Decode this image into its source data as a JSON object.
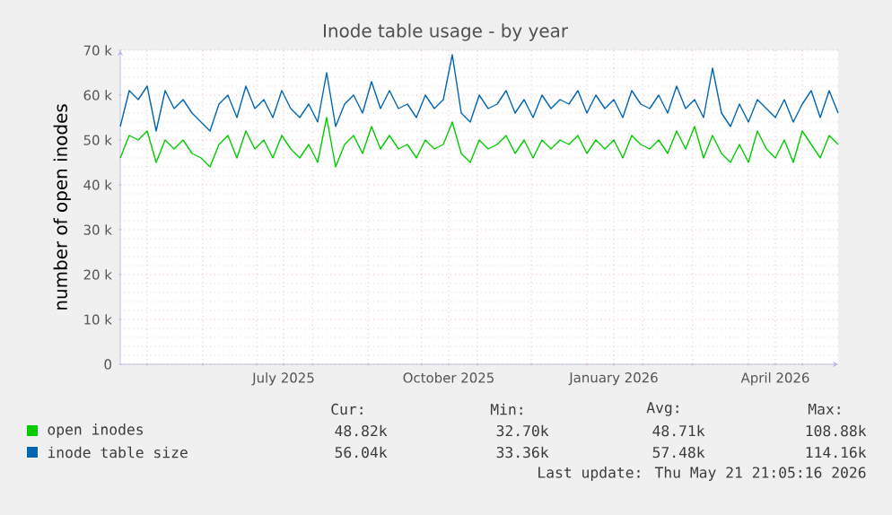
{
  "chart_data": {
    "type": "line",
    "title": "Inode table usage - by year",
    "ylabel": "number of open inodes",
    "xlim": [
      "2025-04-16",
      "2026-05-21"
    ],
    "ylim": [
      0,
      70000
    ],
    "xticks": [
      {
        "value": "2025-05-01",
        "label": null
      },
      {
        "value": "2025-06-01",
        "label": null
      },
      {
        "value": "2025-07-01",
        "label": null
      },
      {
        "value": "2025-07-16",
        "label": "July 2025"
      },
      {
        "value": "2025-08-01",
        "label": null
      },
      {
        "value": "2025-09-01",
        "label": null
      },
      {
        "value": "2025-10-01",
        "label": null
      },
      {
        "value": "2025-10-16",
        "label": "October 2025"
      },
      {
        "value": "2025-11-01",
        "label": null
      },
      {
        "value": "2025-12-01",
        "label": null
      },
      {
        "value": "2026-01-01",
        "label": null
      },
      {
        "value": "2026-01-16",
        "label": "January 2026"
      },
      {
        "value": "2026-02-01",
        "label": null
      },
      {
        "value": "2026-03-01",
        "label": null
      },
      {
        "value": "2026-04-01",
        "label": null
      },
      {
        "value": "2026-04-16",
        "label": "April 2026"
      },
      {
        "value": "2026-05-01",
        "label": null
      }
    ],
    "yticks": [
      0,
      {
        "value": 10000,
        "label": "10 k"
      },
      {
        "value": 20000,
        "label": "20 k"
      },
      {
        "value": 30000,
        "label": "30 k"
      },
      {
        "value": 40000,
        "label": "40 k"
      },
      {
        "value": 50000,
        "label": "50 k"
      },
      {
        "value": 60000,
        "label": "60 k"
      },
      {
        "value": 70000,
        "label": "70 k"
      }
    ],
    "grid": true,
    "legend": "bottom",
    "x": [
      "2025-04-16",
      "2025-04-21",
      "2025-04-26",
      "2025-05-01",
      "2025-05-06",
      "2025-05-11",
      "2025-05-16",
      "2025-05-21",
      "2025-05-26",
      "2025-05-31",
      "2025-06-05",
      "2025-06-10",
      "2025-06-15",
      "2025-06-20",
      "2025-06-25",
      "2025-06-30",
      "2025-07-05",
      "2025-07-10",
      "2025-07-15",
      "2025-07-20",
      "2025-07-25",
      "2025-07-30",
      "2025-08-04",
      "2025-08-09",
      "2025-08-14",
      "2025-08-19",
      "2025-08-24",
      "2025-08-29",
      "2025-09-03",
      "2025-09-08",
      "2025-09-13",
      "2025-09-18",
      "2025-09-23",
      "2025-09-28",
      "2025-10-03",
      "2025-10-08",
      "2025-10-13",
      "2025-10-18",
      "2025-10-23",
      "2025-10-28",
      "2025-11-02",
      "2025-11-07",
      "2025-11-12",
      "2025-11-17",
      "2025-11-22",
      "2025-11-27",
      "2025-12-02",
      "2025-12-07",
      "2025-12-12",
      "2025-12-17",
      "2025-12-22",
      "2025-12-27",
      "2026-01-01",
      "2026-01-06",
      "2026-01-11",
      "2026-01-16",
      "2026-01-21",
      "2026-01-26",
      "2026-01-31",
      "2026-02-05",
      "2026-02-10",
      "2026-02-15",
      "2026-02-20",
      "2026-02-25",
      "2026-03-02",
      "2026-03-07",
      "2026-03-12",
      "2026-03-17",
      "2026-03-22",
      "2026-03-27",
      "2026-04-01",
      "2026-04-06",
      "2026-04-11",
      "2026-04-16",
      "2026-04-21",
      "2026-04-26",
      "2026-05-01",
      "2026-05-06",
      "2026-05-11",
      "2026-05-16",
      "2026-05-21"
    ],
    "series": [
      {
        "name": "open inodes",
        "color": "#00cc00",
        "values": [
          46000,
          51000,
          50000,
          52000,
          45000,
          50000,
          48000,
          50000,
          47000,
          46000,
          44000,
          49000,
          51000,
          46000,
          52000,
          48000,
          50000,
          46000,
          51000,
          48000,
          46000,
          49000,
          45000,
          55000,
          44000,
          49000,
          51000,
          47000,
          53000,
          48000,
          51000,
          48000,
          49000,
          46000,
          50000,
          48000,
          49000,
          54000,
          47000,
          45000,
          50000,
          48000,
          49000,
          51000,
          47000,
          50000,
          46000,
          50000,
          48000,
          50000,
          49000,
          51000,
          47000,
          50000,
          48000,
          50000,
          46000,
          51000,
          49000,
          48000,
          50000,
          47000,
          52000,
          48000,
          53000,
          46000,
          51000,
          47000,
          45000,
          49000,
          45000,
          52000,
          48000,
          46000,
          50000,
          45000,
          52000,
          49000,
          46000,
          51000,
          49000
        ]
      },
      {
        "name": "inode table size",
        "color": "#0066b3",
        "values": [
          53000,
          61000,
          59000,
          62000,
          52000,
          61000,
          57000,
          59000,
          56000,
          54000,
          52000,
          58000,
          60000,
          55000,
          62000,
          57000,
          59000,
          55000,
          61000,
          57000,
          55000,
          58000,
          54000,
          65000,
          53000,
          58000,
          60000,
          56000,
          63000,
          57000,
          61000,
          57000,
          58000,
          55000,
          60000,
          57000,
          59000,
          69000,
          56000,
          54000,
          60000,
          57000,
          58000,
          61000,
          56000,
          59000,
          55000,
          60000,
          57000,
          59000,
          58000,
          61000,
          56000,
          60000,
          57000,
          59000,
          55000,
          61000,
          58000,
          57000,
          60000,
          56000,
          62000,
          57000,
          59000,
          55000,
          66000,
          56000,
          53000,
          58000,
          54000,
          59000,
          57000,
          55000,
          59000,
          54000,
          58000,
          61000,
          55000,
          61000,
          56000
        ]
      }
    ],
    "annotations": [
      "Cur:",
      "Min:",
      "Avg:",
      "Max:",
      "48.82k",
      "32.70k",
      "48.71k",
      "108.88k",
      "56.04k",
      "33.36k",
      "57.48k",
      "114.16k",
      "Last update: Thu May 21 21:05:16 2026"
    ]
  }
}
